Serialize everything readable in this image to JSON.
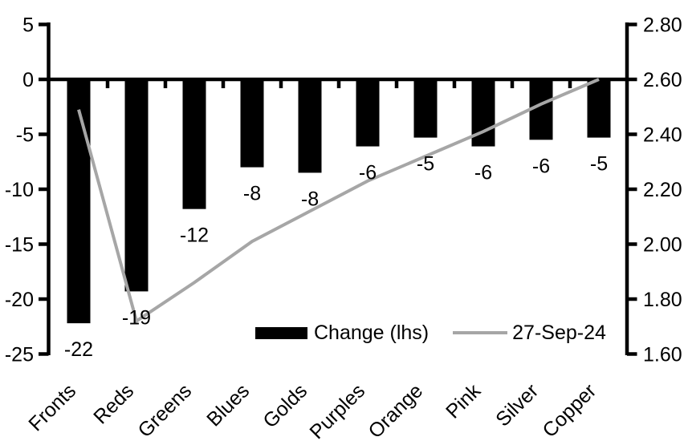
{
  "chart_data": {
    "type": "combo",
    "title": "",
    "categories": [
      "Fronts",
      "Reds",
      "Greens",
      "Blues",
      "Golds",
      "Purples",
      "Orange",
      "Pink",
      "Silver",
      "Copper"
    ],
    "series": [
      {
        "name": "Change (lhs)",
        "type": "bar",
        "axis": "left",
        "color": "#000000",
        "values": [
          -22.2,
          -19.3,
          -11.8,
          -8.0,
          -8.5,
          -6.1,
          -5.3,
          -6.1,
          -5.5,
          -5.3
        ],
        "data_labels": [
          "-22",
          "-19",
          "-12",
          "-8",
          "-8",
          "-6",
          "-5",
          "-6",
          "-6",
          "-5"
        ]
      },
      {
        "name": "27-Sep-24",
        "type": "line",
        "axis": "right",
        "color": "#a6a6a6",
        "values": [
          2.49,
          1.72,
          1.86,
          2.01,
          2.12,
          2.23,
          2.32,
          2.41,
          2.51,
          2.6
        ]
      }
    ],
    "left_axis": {
      "min": -25,
      "max": 5,
      "step": 5,
      "tick_labels": [
        "5",
        "0",
        "-5",
        "-10",
        "-15",
        "-20",
        "-25"
      ]
    },
    "right_axis": {
      "min": 1.6,
      "max": 2.8,
      "step": 0.2,
      "tick_labels": [
        "2.80",
        "2.60",
        "2.40",
        "2.20",
        "2.00",
        "1.80",
        "1.60"
      ]
    },
    "grid": "off",
    "legend_position": "bottom-inside",
    "background": "#ffffff",
    "text_color": "#000000",
    "axis_color": "#000000"
  }
}
